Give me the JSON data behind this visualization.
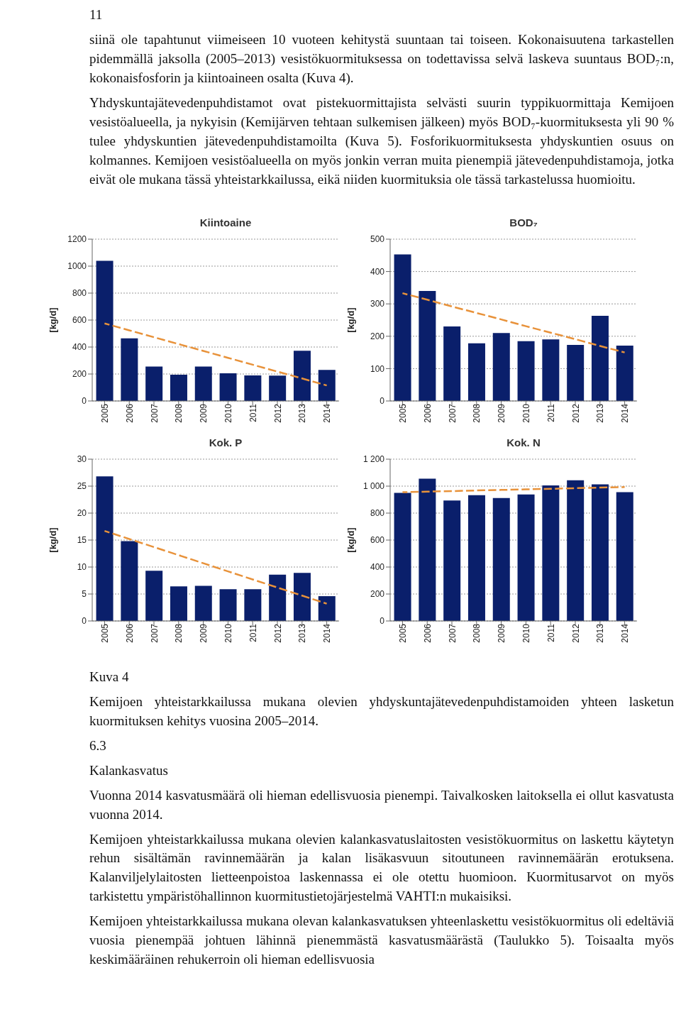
{
  "chart_data": [
    {
      "type": "bar",
      "title": "Kiintoaine",
      "ylabel": "[kg/d]",
      "categories": [
        "2005",
        "2006",
        "2007",
        "2008",
        "2009",
        "2010",
        "2011",
        "2012",
        "2013",
        "2014"
      ],
      "series": [
        {
          "color": "#0a1f6b",
          "values": [
            1040,
            465,
            255,
            195,
            255,
            205,
            190,
            188,
            372,
            230
          ]
        },
        {
          "type": "line",
          "color": "#e8923a",
          "line_style": "dashed",
          "values": [
            575,
            524,
            473,
            422,
            371,
            320,
            269,
            218,
            167,
            115
          ]
        }
      ],
      "ylim": [
        0,
        1200
      ],
      "yticks": [
        0,
        200,
        400,
        600,
        800,
        1000,
        1200
      ],
      "grid": "y",
      "annotations": [
        "11",
        "siinä ole tapahtunut viimeiseen 10 vuoteen kehitystä suuntaan tai toiseen. Kokonaisuutena tarkastellen pidemmällä jaksolla (2005–2013) vesistökuormituksessa on todettavissa selvä laskeva suuntaus BOD₇:n, kokonaisfosforin ja kiintoaineen osalta (Kuva 4).",
        "Yhdyskuntajätevedenpuhdistamot ovat pistekuormittajista selvästi suurin typpikuormittaja Kemijoen vesistöalueella, ja nykyisin (Kemijärven tehtaan sulkemisen jälkeen) myös BOD₇-kuormituksesta yli 90 % tulee yhdyskuntien jätevedenpuhdistamoilta (Kuva 5). Fosforikuormituksesta yhdyskuntien osuus on kolmannes. Kemijoen vesistöalueella on myös jonkin verran muita pienempiä jätevedenpuhdistamoja, jotka eivät ole mukana tässä yhteistarkkailussa, eikä niiden kuormituksia ole tässä tarkastelussa huomioitu."
      ]
    },
    {
      "type": "bar",
      "title": "BOD₇",
      "ylabel": "[kg/d]",
      "categories": [
        "2005",
        "2006",
        "2007",
        "2008",
        "2009",
        "2010",
        "2011",
        "2012",
        "2013",
        "2014"
      ],
      "series": [
        {
          "color": "#0a1f6b",
          "values": [
            453,
            340,
            230,
            178,
            210,
            185,
            190,
            173,
            263,
            171
          ]
        },
        {
          "type": "line",
          "color": "#e8923a",
          "line_style": "dashed",
          "values": [
            333,
            313,
            292,
            272,
            252,
            231,
            211,
            191,
            170,
            150
          ]
        }
      ],
      "ylim": [
        0,
        500
      ],
      "yticks": [
        0,
        100,
        200,
        300,
        400,
        500
      ],
      "grid": "y"
    },
    {
      "type": "bar",
      "title": "Kok. P",
      "ylabel": "[kg/d]",
      "categories": [
        "2005",
        "2006",
        "2007",
        "2008",
        "2009",
        "2010",
        "2011",
        "2012",
        "2013",
        "2014"
      ],
      "series": [
        {
          "color": "#0a1f6b",
          "values": [
            26.8,
            14.8,
            9.3,
            6.4,
            6.5,
            5.9,
            5.9,
            8.6,
            8.9,
            4.6
          ]
        },
        {
          "type": "line",
          "color": "#e8923a",
          "line_style": "dashed",
          "values": [
            16.7,
            15.2,
            13.7,
            12.2,
            10.7,
            9.2,
            7.7,
            6.2,
            4.7,
            3.2
          ]
        }
      ],
      "ylim": [
        0,
        30
      ],
      "yticks": [
        0,
        5,
        10,
        15,
        20,
        25,
        30
      ],
      "grid": "y"
    },
    {
      "type": "bar",
      "title": "Kok. N",
      "ylabel": "[kg/d]",
      "categories": [
        "2005",
        "2006",
        "2007",
        "2008",
        "2009",
        "2010",
        "2011",
        "2012",
        "2013",
        "2014"
      ],
      "series": [
        {
          "color": "#0a1f6b",
          "values": [
            950,
            1055,
            893,
            933,
            912,
            938,
            1005,
            1043,
            1013,
            955
          ]
        },
        {
          "type": "line",
          "color": "#e8923a",
          "line_style": "dashed",
          "values": [
            955,
            959,
            963,
            968,
            972,
            976,
            980,
            985,
            989,
            993
          ]
        }
      ],
      "ylim": [
        0,
        1200
      ],
      "yticks": [
        0,
        200,
        400,
        600,
        800,
        {
          "value": 1000,
          "label": "1 000"
        },
        {
          "value": 1200,
          "label": "1 200"
        }
      ],
      "grid": "y",
      "annotations": [
        "Kuva 4",
        "Kemijoen yhteistarkkailussa mukana olevien yhdyskuntajätevedenpuhdistamoiden yhteen lasketun kuormituksen kehitys vuosina 2005–2014.",
        "6.3",
        "Kalankasvatus",
        "Vuonna 2014 kasvatusmäärä oli hieman edellisvuosia pienempi. Taivalkosken laitoksella ei ollut kasvatusta vuonna 2014.",
        "Kemijoen yhteistarkkailussa mukana olevien kalankasvatuslaitosten vesistökuormitus on laskettu käytetyn rehun sisältämän ravinnemäärän ja kalan lisäkasvuun sitoutuneen ravinnemäärän erotuksena. Kalanviljelylaitosten lietteenpoistoa laskennassa ei ole otettu huomioon. Kuormitusarvot on myös tarkistettu ympäristöhallinnon kuormitustietojärjestelmä VAHTI:n mukaisiksi.",
        "Kemijoen yhteistarkkailussa mukana olevan kalankasvatuksen yhteenlaskettu vesistökuormitus oli edeltäviä vuosia pienempää johtuen lähinnä pienemmästä kasvatusmäärästä (Taulukko 5). Toisaalta myös keskimääräinen rehukerroin oli hieman edellisvuosia"
      ]
    }
  ]
}
